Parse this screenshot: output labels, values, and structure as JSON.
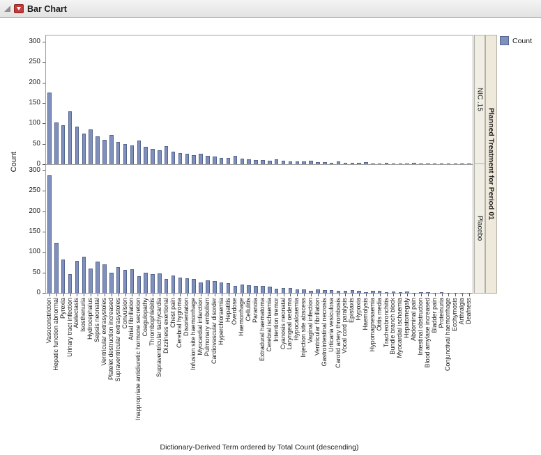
{
  "titlebar": {
    "title": "Bar Chart"
  },
  "legend": {
    "label": "Count",
    "swatch_color": "#7E90BB",
    "swatch_border": "#54658F"
  },
  "chart_data": {
    "type": "bar",
    "title": "Bar Chart",
    "xlabel": "Dictionary-Derived Term ordered by Total Count (descending)",
    "ylabel": "Count",
    "ylim": [
      0,
      300
    ],
    "yticks": [
      0,
      50,
      100,
      150,
      200,
      250,
      300
    ],
    "grid": false,
    "legend_position": "top-right",
    "bar_color": "#7E90BB",
    "bar_border": "#54658F",
    "panel_variable": "Planned Treatment for Period 01",
    "categories": [
      "Vasoconstriction",
      "Hepatic function abnormal",
      "Pyrexia",
      "Urinary tract infection",
      "Atelectasis",
      "Isosthenuria",
      "Hydrocephalus",
      "Sepsis neonatal",
      "Ventricular extrasystoles",
      "Platelet destruction increased",
      "Supraventricular extrasystoles",
      "Convulsion",
      "Atrial fibrillation",
      "Inappropriate antidiuretic hormone secretion",
      "Coagulopathy",
      "Thrombophlebitis",
      "Supraventricular tachycardia",
      "Dizziness exertional",
      "Chest pain",
      "Cerebral hygroma",
      "Disorientation",
      "Infusion site haemorrhage",
      "Myocardial infarction",
      "Pulmonary embolism",
      "Cardiovascular disorder",
      "Hyperchloraemia",
      "Hepatitis",
      "Overdose",
      "Haemorrhage",
      "Cellulitis",
      "Paranoia",
      "Extradural haematoma",
      "Cerebral ischaemia",
      "Intention tremor",
      "Cyanosis neonatal",
      "Laryngeal oedema",
      "Hypocalcaemia",
      "Injection site abscess",
      "Vaginal infection",
      "Ventricular fibrillation",
      "Gastrointestinal necrosis",
      "Urticaria vesiculosa",
      "Carotid artery thrombosis",
      "Vocal cord paralysis",
      "Epistaxis",
      "Hypoxia",
      "Haemolysis",
      "Hypomagnesaemia",
      "Otitis media",
      "Tracheobronchitis",
      "Bundle branch block",
      "Myocardial ischaemia",
      "Hepatomegaly",
      "Abdominal pain",
      "Intestinal obstruction",
      "Blood amylase increased",
      "Bladder pain",
      "Proteinuria",
      "Conjunctival haemorrhage",
      "Ecchymosis",
      "Arthralgia",
      "Deafness"
    ],
    "panels": [
      {
        "name": "NIC .15",
        "values": [
          175,
          102,
          96,
          130,
          92,
          75,
          86,
          68,
          60,
          72,
          55,
          50,
          46,
          58,
          42,
          38,
          34,
          44,
          30,
          28,
          25,
          22,
          26,
          20,
          18,
          16,
          15,
          20,
          13,
          12,
          11,
          10,
          9,
          12,
          8,
          7,
          7,
          6,
          9,
          5,
          5,
          4,
          6,
          4,
          3,
          3,
          5,
          2,
          2,
          4,
          2,
          2,
          1,
          3,
          1,
          1,
          2,
          1,
          1,
          1,
          1,
          1
        ]
      },
      {
        "name": "Placebo",
        "values": [
          290,
          125,
          84,
          48,
          80,
          90,
          62,
          78,
          72,
          52,
          65,
          58,
          60,
          42,
          52,
          48,
          50,
          36,
          44,
          40,
          38,
          36,
          28,
          32,
          30,
          28,
          25,
          18,
          22,
          20,
          19,
          18,
          17,
          12,
          14,
          13,
          11,
          11,
          7,
          10,
          9,
          9,
          6,
          7,
          8,
          7,
          4,
          7,
          6,
          3,
          5,
          4,
          5,
          2,
          4,
          3,
          2,
          3,
          2,
          2,
          1,
          1
        ]
      }
    ]
  }
}
